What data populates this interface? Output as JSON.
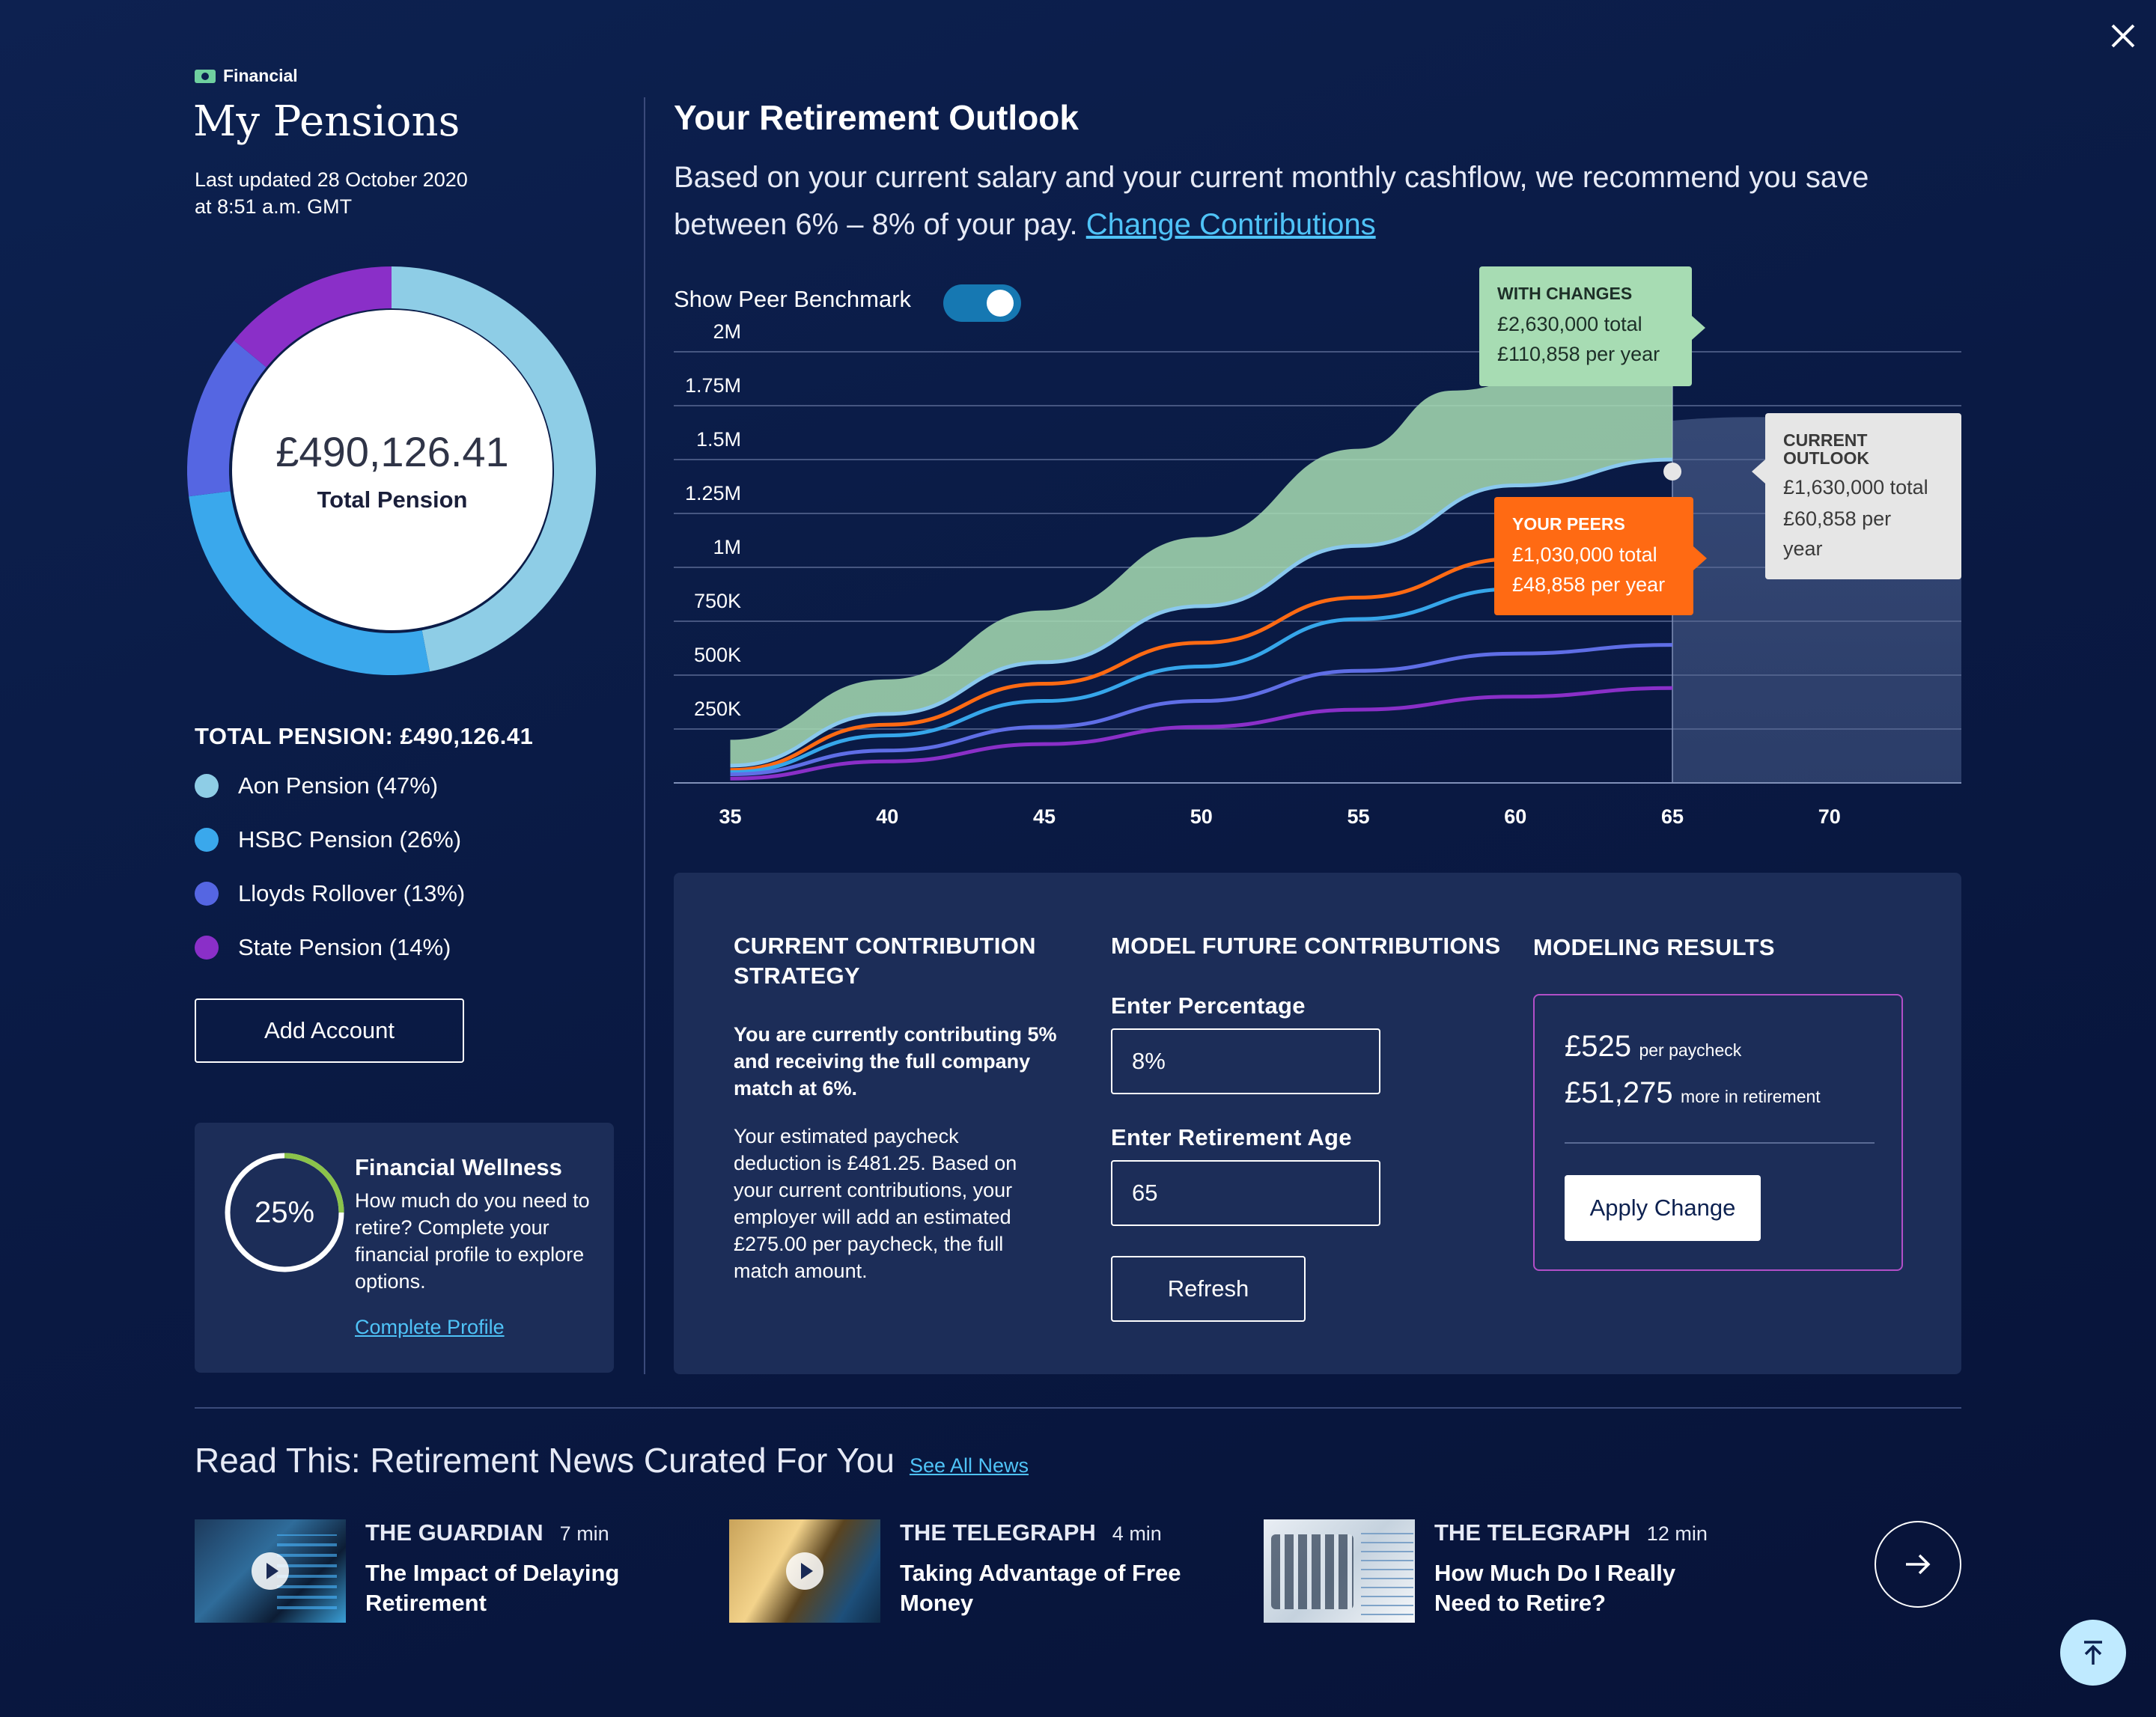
{
  "header": {
    "category": "Financial",
    "title": "My Pensions",
    "updated_line1": "Last updated 28 October 2020",
    "updated_line2": "at 8:51 a.m. GMT"
  },
  "donut": {
    "amount": "£490,126.41",
    "label": "Total Pension",
    "segments": [
      {
        "name": "Aon Pension",
        "percent": 47,
        "color": "#8ecde6"
      },
      {
        "name": "HSBC Pension",
        "percent": 26,
        "color": "#3aa8ec"
      },
      {
        "name": "Lloyds Rollover",
        "percent": 13,
        "color": "#5566e2"
      },
      {
        "name": "State Pension",
        "percent": 14,
        "color": "#8a2fc8"
      }
    ]
  },
  "legend": {
    "heading": "TOTAL PENSION: £490,126.41",
    "items": [
      {
        "label": "Aon Pension (47%)",
        "color": "#8ecde6"
      },
      {
        "label": "HSBC Pension (26%)",
        "color": "#3aa8ec"
      },
      {
        "label": "Lloyds Rollover (13%)",
        "color": "#5566e2"
      },
      {
        "label": "State Pension (14%)",
        "color": "#8a2fc8"
      }
    ]
  },
  "add_account": "Add Account",
  "wellness": {
    "percent_label": "25%",
    "progress": 0.25,
    "title": "Financial Wellness",
    "text": "How much do you need to retire? Complete your financial profile to explore options.",
    "link": "Complete Profile"
  },
  "outlook": {
    "title": "Your Retirement Outlook",
    "desc": "Based on your current salary and your current monthly cashflow, we recommend you save between 6% – 8% of your pay.",
    "link": "Change Contributions",
    "toggle_label": "Show Peer Benchmark",
    "toggle_on": true
  },
  "chart_data": {
    "type": "area",
    "x": [
      35,
      40,
      45,
      50,
      55,
      60,
      65,
      70
    ],
    "xticks": [
      "35",
      "40",
      "45",
      "50",
      "55",
      "60",
      "65",
      "70"
    ],
    "yticks": [
      "250K",
      "500K",
      "750K",
      "1M",
      "1.25M",
      "1.5M",
      "1.75M",
      "2M"
    ],
    "ylim": [
      0,
      2000000
    ],
    "xlim": [
      33.2,
      74.2
    ],
    "retirement_age": 65,
    "series": [
      {
        "name": "With Changes",
        "color": "#a7dcb3",
        "x": [
          35,
          40,
          45,
          50,
          55,
          58,
          62,
          65
        ],
        "values": [
          200000,
          480000,
          800000,
          1140000,
          1550000,
          1820000,
          1960000,
          2050000
        ]
      },
      {
        "name": "Current Outlook",
        "color": "#8ac8ee",
        "x": [
          35,
          40,
          45,
          50,
          55,
          60,
          65
        ],
        "values": [
          80000,
          320000,
          560000,
          820000,
          1100000,
          1380000,
          1500000
        ]
      },
      {
        "name": "Your Peers",
        "color": "#ff6a13",
        "x": [
          35,
          40,
          45,
          50,
          55,
          60,
          65
        ],
        "values": [
          60000,
          270000,
          460000,
          650000,
          860000,
          1040000,
          1150000
        ]
      },
      {
        "name": "HSBC Pension",
        "color": "#36a6ea",
        "x": [
          35,
          40,
          45,
          50,
          55,
          60,
          65
        ],
        "values": [
          50000,
          220000,
          380000,
          540000,
          760000,
          900000,
          980000
        ]
      },
      {
        "name": "Lloyds Rollover",
        "color": "#5f6ee6",
        "x": [
          35,
          40,
          45,
          50,
          55,
          60,
          65
        ],
        "values": [
          40000,
          150000,
          260000,
          380000,
          520000,
          600000,
          640000
        ]
      },
      {
        "name": "State Pension",
        "color": "#8a2fc8",
        "x": [
          35,
          40,
          45,
          50,
          55,
          60,
          65
        ],
        "values": [
          20000,
          100000,
          180000,
          260000,
          340000,
          400000,
          440000
        ]
      }
    ],
    "callouts": [
      {
        "title": "WITH CHANGES",
        "line1": "£2,630,000 total",
        "line2": "£110,858 per year"
      },
      {
        "title": "CURRENT OUTLOOK",
        "line1": "£1,630,000 total",
        "line2": "£60,858 per year"
      },
      {
        "title": "YOUR PEERS",
        "line1": "£1,030,000 total",
        "line2": "£48,858 per year"
      }
    ]
  },
  "contributions": {
    "current": {
      "heading": "CURRENT CONTRIBUTION STRATEGY",
      "bold_text": "You are currently contributing 5% and receiving the full company match at 6%.",
      "text": "Your estimated paycheck deduction is £481.25. Based on your current contributions, your employer will add an estimated £275.00 per paycheck, the full match amount."
    },
    "model": {
      "heading": "MODEL FUTURE CONTRIBUTIONS",
      "percent_label": "Enter Percentage",
      "percent_value": "8%",
      "age_label": "Enter Retirement Age",
      "age_value": "65",
      "refresh": "Refresh"
    },
    "results": {
      "heading": "MODELING RESULTS",
      "amount1": "£525",
      "amount1_label": "per paycheck",
      "amount2": "£51,275",
      "amount2_label": "more in retirement",
      "apply": "Apply Change"
    }
  },
  "news": {
    "heading": "Read This: Retirement News Curated For You",
    "see_all": "See All News",
    "items": [
      {
        "source": "THE GUARDIAN",
        "time": "7 min",
        "title": "The Impact of Delaying Retirement"
      },
      {
        "source": "THE TELEGRAPH",
        "time": "4 min",
        "title": "Taking Advantage of Free Money"
      },
      {
        "source": "THE TELEGRAPH",
        "time": "12 min",
        "title": "How Much Do I Really Need to Retire?"
      }
    ]
  }
}
